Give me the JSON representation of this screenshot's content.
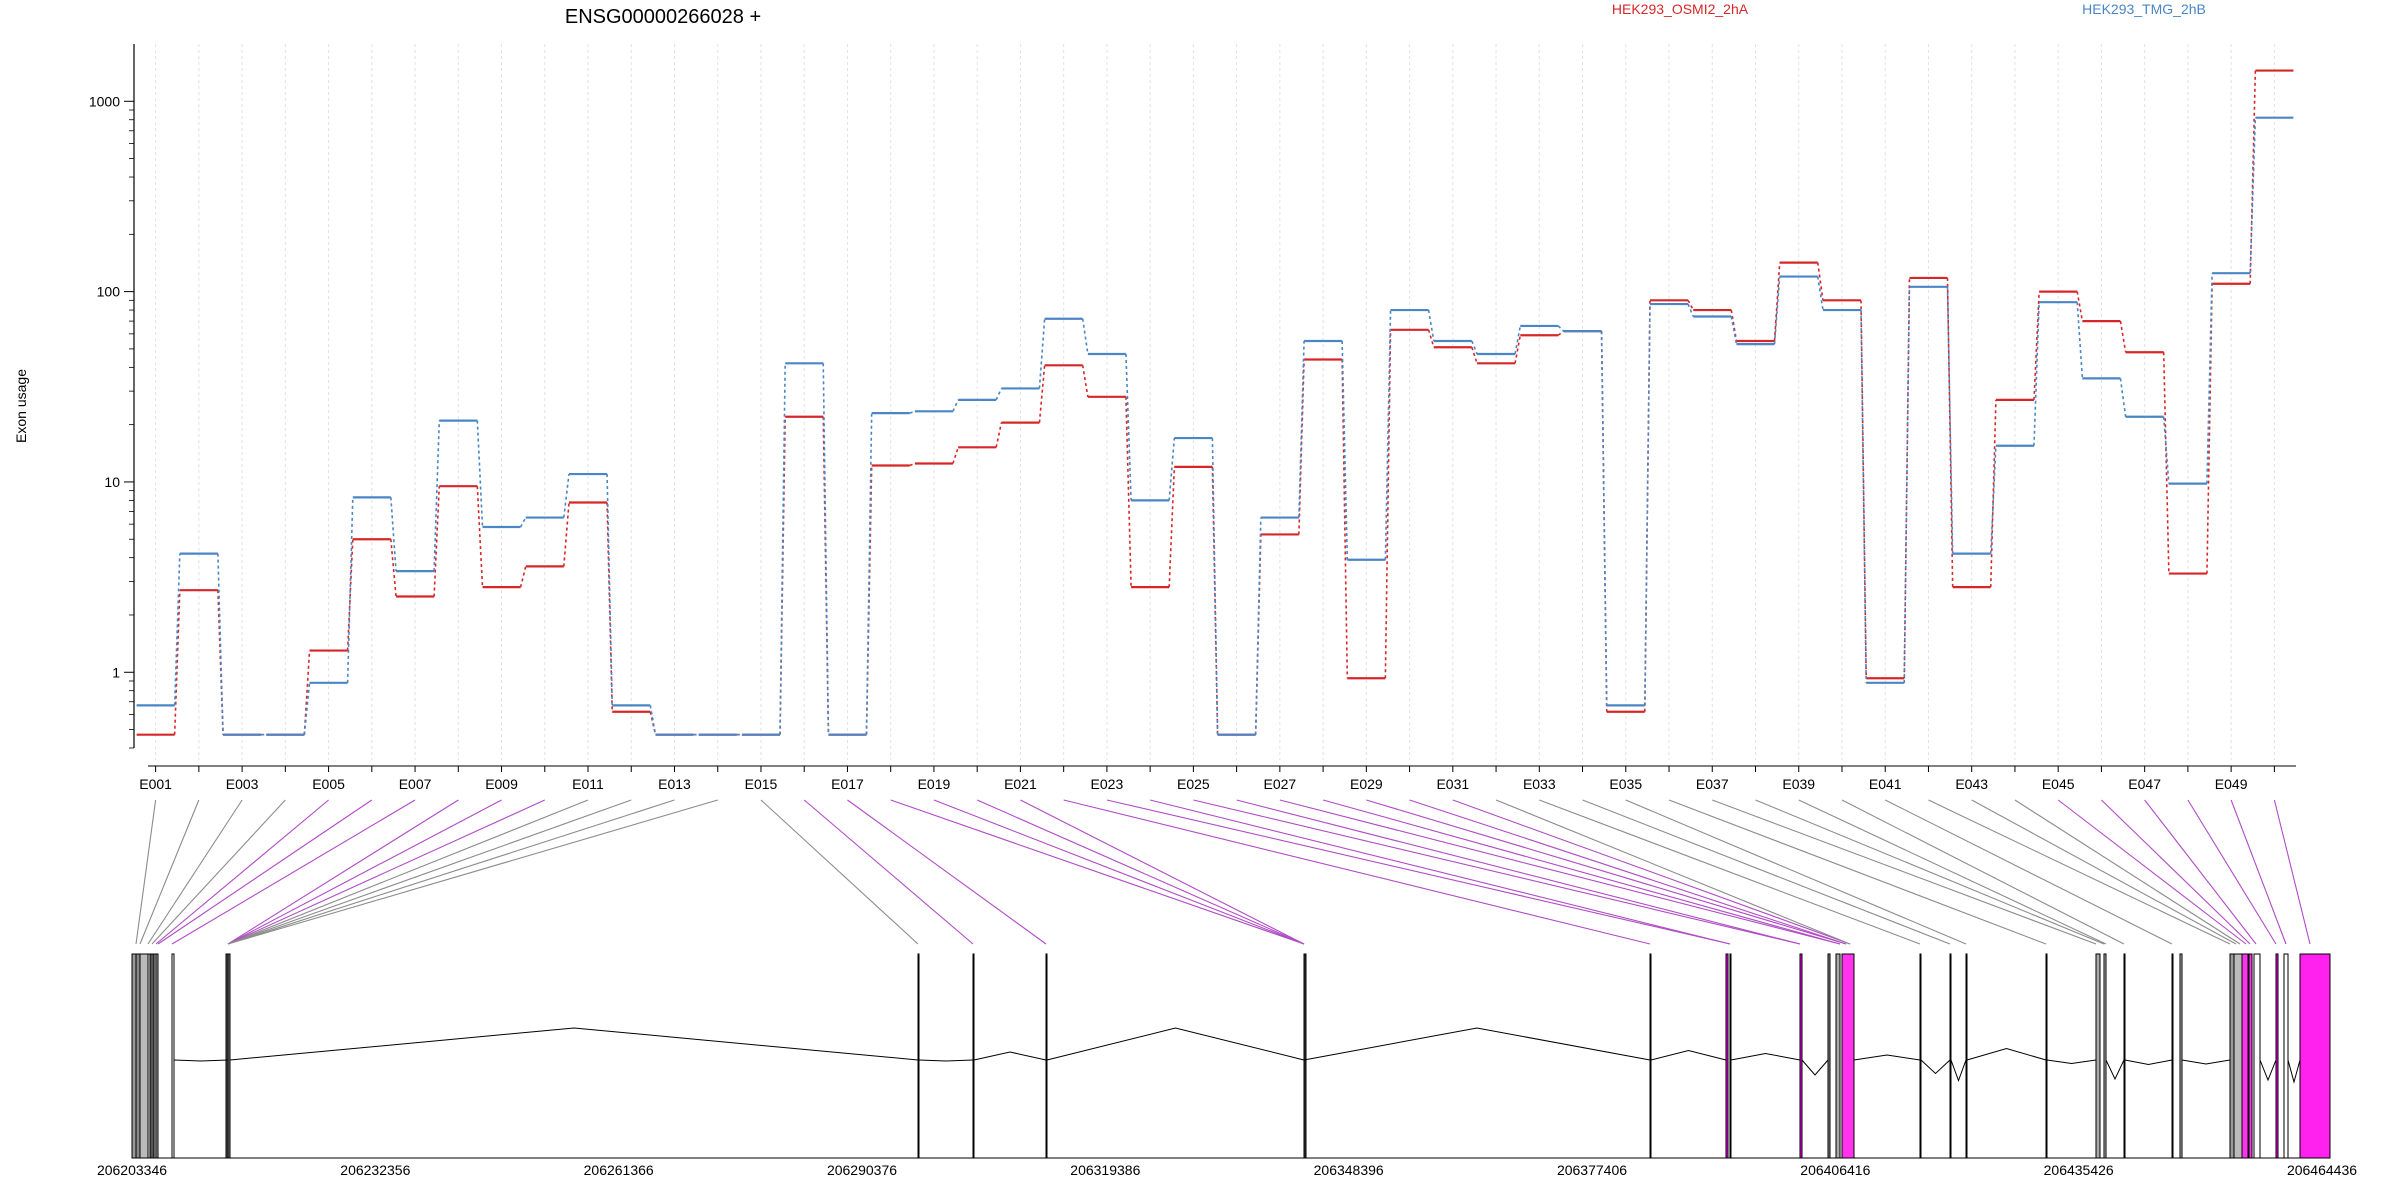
{
  "chart_data": {
    "type": "line",
    "title": "ENSG00000266028 +",
    "ylabel": "Exon usage",
    "yscale": "log",
    "ylim": [
      0.4,
      2000
    ],
    "yticks": [
      1,
      10,
      100,
      1000
    ],
    "ytick_labels": [
      "1",
      "10",
      "100",
      "1000"
    ],
    "legend": [
      "HEK293_OSMI2_2hA",
      "HEK293_TMG_2hB"
    ],
    "categories": [
      "E001",
      "E002",
      "E003",
      "E004",
      "E005",
      "E006",
      "E007",
      "E008",
      "E009",
      "E010",
      "E011",
      "E012",
      "E013",
      "E014",
      "E015",
      "E016",
      "E017",
      "E018",
      "E019",
      "E020",
      "E021",
      "E022",
      "E023",
      "E024",
      "E025",
      "E026",
      "E027",
      "E028",
      "E029",
      "E030",
      "E031",
      "E032",
      "E033",
      "E034",
      "E035",
      "E036",
      "E037",
      "E038",
      "E039",
      "E040",
      "E041",
      "E042",
      "E043",
      "E044",
      "E045",
      "E046",
      "E047",
      "E048",
      "E049",
      "E050"
    ],
    "xtick_labels": [
      "E001",
      "E003",
      "E005",
      "E007",
      "E009",
      "E011",
      "E013",
      "E015",
      "E017",
      "E019",
      "E021",
      "E023",
      "E025",
      "E027",
      "E029",
      "E031",
      "E033",
      "E035",
      "E037",
      "E039",
      "E041",
      "E043",
      "E045",
      "E047",
      "E049"
    ],
    "series": [
      {
        "name": "HEK293_OSMI2_2hA",
        "color": "#d62728",
        "values": [
          0.47,
          2.7,
          0.47,
          0.47,
          1.3,
          5.0,
          2.5,
          9.5,
          2.8,
          3.6,
          7.8,
          0.62,
          0.47,
          0.47,
          0.47,
          22,
          0.47,
          12.2,
          12.5,
          15.2,
          20.5,
          41,
          28,
          2.8,
          12,
          0.47,
          5.3,
          44,
          0.93,
          63,
          51,
          42,
          59,
          62,
          0.62,
          90,
          80,
          55,
          142,
          90,
          0.93,
          118,
          2.8,
          27,
          100,
          70,
          48,
          3.3,
          110,
          1450
        ]
      },
      {
        "name": "HEK293_TMG_2hB",
        "color": "#4a86c5",
        "values": [
          0.67,
          4.2,
          0.47,
          0.47,
          0.88,
          8.3,
          3.4,
          21,
          5.8,
          6.5,
          11,
          0.67,
          0.47,
          0.47,
          0.47,
          42,
          0.47,
          23,
          23.5,
          27,
          31,
          72,
          47,
          8,
          17,
          0.47,
          6.5,
          55,
          3.9,
          80,
          55,
          47,
          66,
          62,
          0.67,
          86,
          74,
          53,
          120,
          80,
          0.88,
          106,
          4.2,
          15.5,
          88,
          35,
          22,
          9.8,
          125,
          820
        ]
      }
    ],
    "gene_axis": {
      "tick_labels": [
        "206203346",
        "206232356",
        "206261366",
        "206290376",
        "206319386",
        "206348396",
        "206377406",
        "206406416",
        "206435426",
        "206464436"
      ]
    },
    "grid": "vertical dashed",
    "legend_position": "top"
  }
}
